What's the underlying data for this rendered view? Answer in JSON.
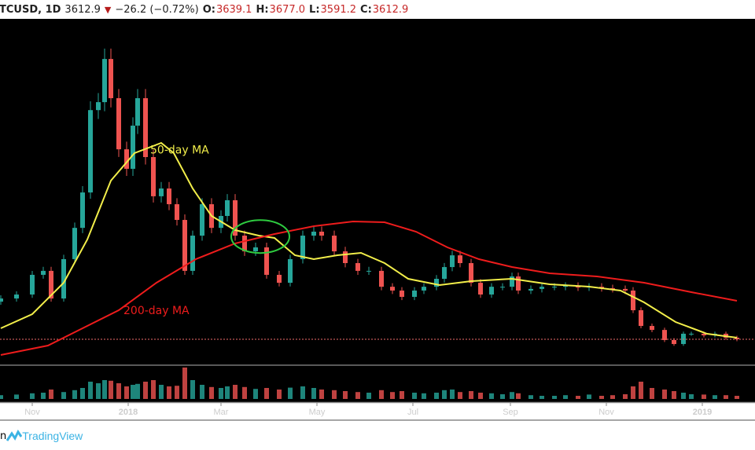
{
  "header": {
    "symbol": "TCUSD, 1D",
    "last": "3612.9",
    "direction_icon": "triangle-down",
    "change": "−26.2 (−0.72%)",
    "open_label": "O:",
    "open": "3639.1",
    "high_label": "H:",
    "high": "3677.0",
    "low_label": "L:",
    "low": "3591.2",
    "close_label": "C:",
    "close": "3612.9"
  },
  "footer": {
    "prefix": "n",
    "brand": "TradingView"
  },
  "colors": {
    "up": "#26a69a",
    "down": "#ef5350",
    "ma50": "#f2ee4a",
    "ma200": "#ee1c1c",
    "ellipse": "#2ecc40",
    "background": "#000000"
  },
  "chart_data": {
    "type": "candlestick",
    "ylim": [
      2300,
      21300
    ],
    "xlim": [
      "2017-10-12",
      "2019-01-30"
    ],
    "last_price": 3612.9,
    "x_ticks": [
      {
        "date": "2017-11-01",
        "label": "Nov",
        "bold": false
      },
      {
        "date": "2018-01-01",
        "label": "2018",
        "bold": true
      },
      {
        "date": "2018-03-01",
        "label": "Mar",
        "bold": false
      },
      {
        "date": "2018-05-01",
        "label": "May",
        "bold": false
      },
      {
        "date": "2018-07-01",
        "label": "Jul",
        "bold": false
      },
      {
        "date": "2018-09-01",
        "label": "Sep",
        "bold": false
      },
      {
        "date": "2018-11-01",
        "label": "Nov",
        "bold": false
      },
      {
        "date": "2019-01-01",
        "label": "2019",
        "bold": true
      }
    ],
    "closes": [
      [
        "2017-10-12",
        5870
      ],
      [
        "2017-10-22",
        6090
      ],
      [
        "2017-11-01",
        7180
      ],
      [
        "2017-11-08",
        7400
      ],
      [
        "2017-11-13",
        5870
      ],
      [
        "2017-11-21",
        8050
      ],
      [
        "2017-11-28",
        9780
      ],
      [
        "2017-12-03",
        11740
      ],
      [
        "2017-12-08",
        16300
      ],
      [
        "2017-12-13",
        16740
      ],
      [
        "2017-12-17",
        19130
      ],
      [
        "2017-12-21",
        16960
      ],
      [
        "2017-12-26",
        14130
      ],
      [
        "2017-12-31",
        13050
      ],
      [
        "2018-01-04",
        15440
      ],
      [
        "2018-01-07",
        16960
      ],
      [
        "2018-01-12",
        13700
      ],
      [
        "2018-01-17",
        11530
      ],
      [
        "2018-01-22",
        11960
      ],
      [
        "2018-01-27",
        11090
      ],
      [
        "2018-02-01",
        10220
      ],
      [
        "2018-02-06",
        7400
      ],
      [
        "2018-02-11",
        9350
      ],
      [
        "2018-02-17",
        11090
      ],
      [
        "2018-02-23",
        9780
      ],
      [
        "2018-03-01",
        10440
      ],
      [
        "2018-03-05",
        11310
      ],
      [
        "2018-03-10",
        9350
      ],
      [
        "2018-03-16",
        8480
      ],
      [
        "2018-03-23",
        8700
      ],
      [
        "2018-03-30",
        7180
      ],
      [
        "2018-04-07",
        6740
      ],
      [
        "2018-04-14",
        8050
      ],
      [
        "2018-04-22",
        9350
      ],
      [
        "2018-04-29",
        9570
      ],
      [
        "2018-05-04",
        9350
      ],
      [
        "2018-05-12",
        8480
      ],
      [
        "2018-05-19",
        7830
      ],
      [
        "2018-05-27",
        7400
      ],
      [
        "2018-06-03",
        7400
      ],
      [
        "2018-06-11",
        6520
      ],
      [
        "2018-06-18",
        6310
      ],
      [
        "2018-06-24",
        5960
      ],
      [
        "2018-07-02",
        6310
      ],
      [
        "2018-07-08",
        6520
      ],
      [
        "2018-07-16",
        6960
      ],
      [
        "2018-07-21",
        7610
      ],
      [
        "2018-07-26",
        8260
      ],
      [
        "2018-07-31",
        7830
      ],
      [
        "2018-08-07",
        6740
      ],
      [
        "2018-08-13",
        6090
      ],
      [
        "2018-08-20",
        6520
      ],
      [
        "2018-08-27",
        6520
      ],
      [
        "2018-09-02",
        7090
      ],
      [
        "2018-09-06",
        6310
      ],
      [
        "2018-09-14",
        6400
      ],
      [
        "2018-09-21",
        6520
      ],
      [
        "2018-09-29",
        6520
      ],
      [
        "2018-10-06",
        6570
      ],
      [
        "2018-10-14",
        6480
      ],
      [
        "2018-10-21",
        6520
      ],
      [
        "2018-10-29",
        6440
      ],
      [
        "2018-11-05",
        6400
      ],
      [
        "2018-11-13",
        6310
      ],
      [
        "2018-11-18",
        5220
      ],
      [
        "2018-11-23",
        4350
      ],
      [
        "2018-11-30",
        4130
      ],
      [
        "2018-12-08",
        3570
      ],
      [
        "2018-12-14",
        3350
      ],
      [
        "2018-12-20",
        3920
      ],
      [
        "2018-12-25",
        3920
      ],
      [
        "2019-01-02",
        3830
      ],
      [
        "2019-01-09",
        3920
      ],
      [
        "2019-01-16",
        3700
      ],
      [
        "2019-01-23",
        3613
      ]
    ],
    "volume_relative": [
      12,
      14,
      18,
      20,
      30,
      22,
      28,
      35,
      55,
      50,
      60,
      58,
      50,
      40,
      45,
      48,
      55,
      60,
      45,
      40,
      42,
      100,
      60,
      45,
      38,
      35,
      40,
      45,
      38,
      32,
      35,
      30,
      36,
      40,
      35,
      30,
      28,
      25,
      22,
      20,
      28,
      22,
      25,
      20,
      18,
      20,
      28,
      30,
      22,
      25,
      20,
      18,
      15,
      22,
      18,
      12,
      10,
      10,
      12,
      10,
      14,
      10,
      12,
      15,
      40,
      55,
      35,
      30,
      25,
      20,
      15,
      14,
      12,
      12,
      10
    ],
    "series": [
      {
        "name": "50-day MA",
        "points": [
          [
            "2017-10-12",
            4222
          ],
          [
            "2017-11-01",
            5004
          ],
          [
            "2017-11-21",
            6744
          ],
          [
            "2017-12-06",
            9135
          ],
          [
            "2017-12-21",
            12396
          ],
          [
            "2018-01-05",
            13917
          ],
          [
            "2018-01-22",
            14483
          ],
          [
            "2018-01-30",
            13917
          ],
          [
            "2018-02-11",
            11961
          ],
          [
            "2018-02-23",
            10439
          ],
          [
            "2018-03-10",
            9656
          ],
          [
            "2018-03-25",
            9352
          ],
          [
            "2018-04-04",
            9222
          ],
          [
            "2018-04-17",
            8265
          ],
          [
            "2018-04-29",
            8048
          ],
          [
            "2018-05-14",
            8265
          ],
          [
            "2018-05-29",
            8396
          ],
          [
            "2018-06-13",
            7830
          ],
          [
            "2018-06-28",
            6961
          ],
          [
            "2018-07-18",
            6613
          ],
          [
            "2018-08-07",
            6830
          ],
          [
            "2018-09-02",
            6961
          ],
          [
            "2018-09-26",
            6657
          ],
          [
            "2018-10-21",
            6526
          ],
          [
            "2018-11-10",
            6309
          ],
          [
            "2018-11-25",
            5656
          ],
          [
            "2018-12-15",
            4569
          ],
          [
            "2019-01-04",
            3917
          ],
          [
            "2019-01-23",
            3700
          ]
        ]
      },
      {
        "name": "200-day MA",
        "points": [
          [
            "2017-10-12",
            2743
          ],
          [
            "2017-11-11",
            3265
          ],
          [
            "2017-12-01",
            4135
          ],
          [
            "2017-12-26",
            5222
          ],
          [
            "2018-01-19",
            6744
          ],
          [
            "2018-02-13",
            8048
          ],
          [
            "2018-03-10",
            8917
          ],
          [
            "2018-04-04",
            9439
          ],
          [
            "2018-04-29",
            9874
          ],
          [
            "2018-05-24",
            10135
          ],
          [
            "2018-06-13",
            10091
          ],
          [
            "2018-07-03",
            9570
          ],
          [
            "2018-07-23",
            8700
          ],
          [
            "2018-08-12",
            8048
          ],
          [
            "2018-09-02",
            7613
          ],
          [
            "2018-09-26",
            7265
          ],
          [
            "2018-10-26",
            7091
          ],
          [
            "2018-11-25",
            6744
          ],
          [
            "2018-12-25",
            6222
          ],
          [
            "2019-01-23",
            5744
          ]
        ]
      }
    ],
    "annotations": [
      {
        "text": "50-day MA",
        "color": "#f2ee4a",
        "date": "2018-01-15",
        "price": 13900
      },
      {
        "text": "200-day MA",
        "color": "#ee1c1c",
        "date": "2017-12-29",
        "price": 5000
      },
      {
        "shape": "ellipse",
        "color": "#2ecc40",
        "date": "2018-03-26",
        "price": 9300
      }
    ]
  }
}
